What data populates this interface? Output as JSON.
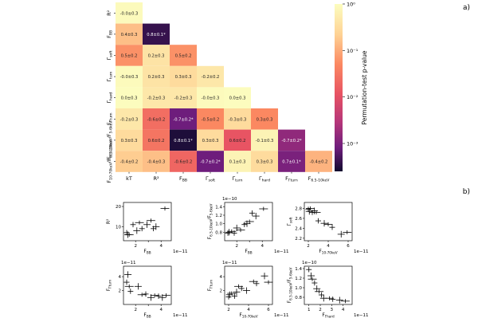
{
  "panel_a_label": "a)",
  "panel_b_label": "b)",
  "heatmap": {
    "row_labels": [
      "R²",
      "F_BB",
      "Γ_soft",
      "Γ_turn",
      "Γ_hard",
      "F_Γ_turn",
      "F_{6.5-10keV}/F_{5-6keV}",
      "F_{10-70keV}/F_{6.5-10keV}"
    ],
    "col_labels": [
      "kT",
      "R²",
      "F_BB",
      "Γ_soft",
      "Γ_turn",
      "Γ_hard",
      "F_Γ_turn",
      "F_{6.5-10keV}"
    ],
    "colorbar": {
      "label": "Permutation-test p-value",
      "ticks": [
        "10⁰",
        "10⁻¹",
        "10⁻²",
        "10⁻³"
      ],
      "log_min": -3.6,
      "log_max": 0
    },
    "cells": [
      [
        {
          "text": "-0.0±0.3",
          "p": 0.9
        }
      ],
      [
        {
          "text": "0.4±0.3",
          "p": 0.15
        },
        {
          "text": "0.8±0.1*",
          "p": 0.0004
        }
      ],
      [
        {
          "text": "0.5±0.2",
          "p": 0.06
        },
        {
          "text": "0.2±0.3",
          "p": 0.4
        },
        {
          "text": "0.5±0.2",
          "p": 0.06
        }
      ],
      [
        {
          "text": "-0.0±0.3",
          "p": 0.9
        },
        {
          "text": "0.2±0.3",
          "p": 0.4
        },
        {
          "text": "0.3±0.3",
          "p": 0.3
        },
        {
          "text": "-0.2±0.2",
          "p": 0.45
        }
      ],
      [
        {
          "text": "0.0±0.3",
          "p": 0.95
        },
        {
          "text": "-0.2±0.3",
          "p": 0.45
        },
        {
          "text": "-0.2±0.3",
          "p": 0.45
        },
        {
          "text": "-0.0±0.3",
          "p": 0.9
        },
        {
          "text": "0.0±0.3",
          "p": 0.95
        }
      ],
      [
        {
          "text": "-0.2±0.3",
          "p": 0.45
        },
        {
          "text": "-0.6±0.2",
          "p": 0.025
        },
        {
          "text": "-0.7±0.2*",
          "p": 0.0008
        },
        {
          "text": "-0.5±0.2",
          "p": 0.05
        },
        {
          "text": "-0.3±0.3",
          "p": 0.3
        },
        {
          "text": "0.3±0.3",
          "p": 0.05
        }
      ],
      [
        {
          "text": "0.3±0.3",
          "p": 0.3
        },
        {
          "text": "0.6±0.2",
          "p": 0.03
        },
        {
          "text": "0.8±0.1*",
          "p": 0.0003
        },
        {
          "text": "0.3±0.3",
          "p": 0.3
        },
        {
          "text": "0.6±0.2",
          "p": 0.012
        },
        {
          "text": "-0.1±0.3",
          "p": 0.7
        },
        {
          "text": "-0.7±0.2*",
          "p": 0.0015
        }
      ],
      [
        {
          "text": "-0.4±0.2",
          "p": 0.2
        },
        {
          "text": "-0.4±0.3",
          "p": 0.15
        },
        {
          "text": "-0.6±0.2",
          "p": 0.02
        },
        {
          "text": "-0.7±0.2*",
          "p": 0.0008
        },
        {
          "text": "0.1±0.3",
          "p": 0.7
        },
        {
          "text": "0.3±0.3",
          "p": 0.3
        },
        {
          "text": "0.7±0.1*",
          "p": 0.001
        },
        {
          "text": "-0.4±0.2",
          "p": 0.12
        }
      ]
    ]
  },
  "scatter_panels": [
    {
      "xlabel": "F_BB",
      "ylabel": "R²",
      "yscale": "",
      "xscale": "1e−11",
      "xlim": [
        1.05,
        4.8
      ],
      "ylim": [
        3,
        22
      ],
      "xticks": [
        2,
        3,
        4
      ],
      "xtick_labels": [
        "2",
        "",
        "4"
      ],
      "yticks": [
        10,
        20
      ],
      "ytick_labels": [
        "10",
        "20"
      ],
      "points": [
        [
          1.3,
          7
        ],
        [
          1.4,
          6
        ],
        [
          1.5,
          6
        ],
        [
          1.8,
          11
        ],
        [
          2.1,
          8
        ],
        [
          2.3,
          12
        ],
        [
          2.5,
          9
        ],
        [
          2.9,
          11
        ],
        [
          3.2,
          13
        ],
        [
          3.4,
          9
        ],
        [
          3.6,
          10
        ],
        [
          4.3,
          19
        ]
      ]
    },
    {
      "xlabel": "F_BB",
      "ylabel": "F_{6.5-10keV}/F_{5-6keV}",
      "yscale": "1e−10",
      "xscale": "1e−11",
      "xlim": [
        1.05,
        4.8
      ],
      "ylim": [
        0.6,
        1.5
      ],
      "xticks": [
        2,
        3,
        4
      ],
      "xtick_labels": [
        "2",
        "",
        "4"
      ],
      "yticks": [
        0.8,
        1.0,
        1.2,
        1.4
      ],
      "ytick_labels": [
        "0.8",
        "1.0",
        "1.2",
        "1.4"
      ],
      "points": [
        [
          1.3,
          0.78
        ],
        [
          1.4,
          0.8
        ],
        [
          1.6,
          0.82
        ],
        [
          1.8,
          0.78
        ],
        [
          2.0,
          0.9
        ],
        [
          2.3,
          0.85
        ],
        [
          2.6,
          0.98
        ],
        [
          2.8,
          1.0
        ],
        [
          3.0,
          1.05
        ],
        [
          3.2,
          1.25
        ],
        [
          3.5,
          1.18
        ],
        [
          4.1,
          1.35
        ]
      ]
    },
    {
      "xlabel": "F_{10-70keV}",
      "ylabel": "Γ_soft",
      "yscale": "",
      "xscale": "1e−11",
      "xlim": [
        1.6,
        6.4
      ],
      "ylim": [
        2.15,
        2.92
      ],
      "xticks": [
        2,
        4,
        6
      ],
      "xtick_labels": [
        "2",
        "4",
        "6"
      ],
      "yticks": [
        2.2,
        2.4,
        2.6,
        2.8
      ],
      "ytick_labels": [
        "2.2",
        "2.4",
        "2.6",
        "2.8"
      ],
      "points": [
        [
          2.0,
          2.78
        ],
        [
          2.1,
          2.74
        ],
        [
          2.2,
          2.8
        ],
        [
          2.4,
          2.72
        ],
        [
          2.6,
          2.75
        ],
        [
          2.8,
          2.72
        ],
        [
          3.0,
          2.55
        ],
        [
          3.6,
          2.5
        ],
        [
          4.0,
          2.48
        ],
        [
          4.4,
          2.42
        ],
        [
          5.3,
          2.28
        ],
        [
          5.9,
          2.32
        ]
      ]
    },
    {
      "xlabel": "F_BB",
      "ylabel": "F_Γ_turn",
      "yscale": "1e−11",
      "xscale": "1e−11",
      "xlim": [
        1.05,
        4.8
      ],
      "ylim": [
        0,
        5.5
      ],
      "xticks": [
        2,
        3,
        4
      ],
      "xtick_labels": [
        "2",
        "",
        "4"
      ],
      "yticks": [
        2,
        4
      ],
      "ytick_labels": [
        "2",
        "4"
      ],
      "points": [
        [
          1.3,
          3.2
        ],
        [
          1.4,
          4.3
        ],
        [
          1.5,
          2.6
        ],
        [
          1.6,
          1.9
        ],
        [
          2.2,
          2.6
        ],
        [
          2.5,
          1.4
        ],
        [
          2.8,
          1.5
        ],
        [
          3.2,
          1.0
        ],
        [
          3.5,
          1.3
        ],
        [
          3.8,
          1.2
        ],
        [
          4.1,
          1.0
        ],
        [
          4.4,
          1.3
        ]
      ]
    },
    {
      "xlabel": "F_{10-70keV}",
      "ylabel": "F_Γ_turn",
      "yscale": "1e−11",
      "xscale": "1e−11",
      "xlim": [
        1.6,
        6.4
      ],
      "ylim": [
        0,
        5.5
      ],
      "xticks": [
        2,
        4,
        6
      ],
      "xtick_labels": [
        "2",
        "4",
        "6"
      ],
      "yticks": [
        2,
        4
      ],
      "ytick_labels": [
        "2",
        "4"
      ],
      "points": [
        [
          2.0,
          1.1
        ],
        [
          2.1,
          1.4
        ],
        [
          2.3,
          1.6
        ],
        [
          2.6,
          1.2
        ],
        [
          2.8,
          1.8
        ],
        [
          3.0,
          2.6
        ],
        [
          3.3,
          2.3
        ],
        [
          3.8,
          2.0
        ],
        [
          4.5,
          3.3
        ],
        [
          4.8,
          3.0
        ],
        [
          5.6,
          4.1
        ],
        [
          6.0,
          3.2
        ]
      ]
    },
    {
      "xlabel": "F_Γ_hard",
      "ylabel": "F_{6.5-10keV}/F_{5-6keV}",
      "yscale": "1e−10",
      "xscale": "1e−11",
      "xlim": [
        0.6,
        4.8
      ],
      "ylim": [
        0.65,
        1.45
      ],
      "xticks": [
        1,
        2,
        3,
        4
      ],
      "xtick_labels": [
        "1",
        "2",
        "3",
        "4"
      ],
      "yticks": [
        0.8,
        1.0,
        1.2,
        1.4
      ],
      "ytick_labels": [
        "0.8",
        "1.0",
        "1.2",
        "1.4"
      ],
      "points": [
        [
          1.0,
          1.38
        ],
        [
          1.2,
          1.25
        ],
        [
          1.3,
          1.18
        ],
        [
          1.5,
          1.1
        ],
        [
          1.7,
          0.98
        ],
        [
          1.9,
          0.92
        ],
        [
          2.1,
          0.85
        ],
        [
          2.3,
          0.78
        ],
        [
          2.8,
          0.78
        ],
        [
          3.1,
          0.76
        ],
        [
          3.7,
          0.74
        ],
        [
          4.2,
          0.72
        ]
      ]
    }
  ]
}
